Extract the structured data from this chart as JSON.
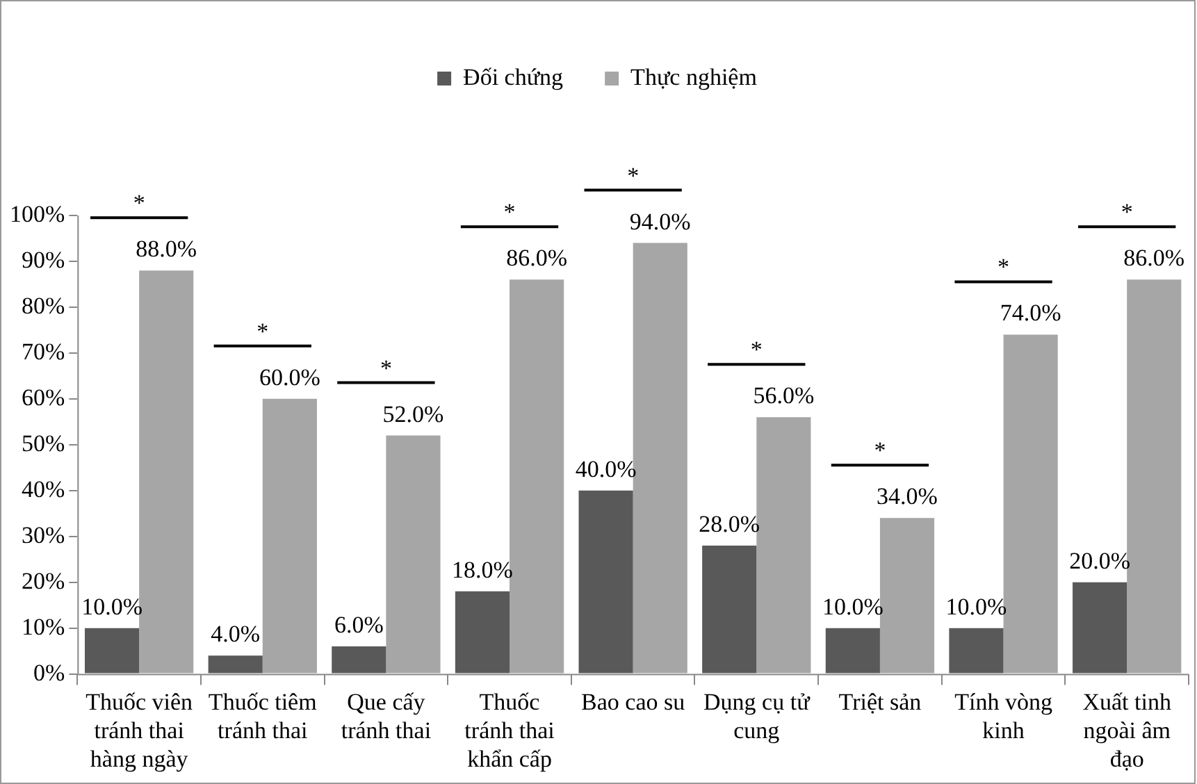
{
  "chart_data": {
    "type": "bar",
    "categories": [
      "Thuốc viên tránh thai hàng ngày",
      "Thuốc tiêm tránh thai",
      "Que cấy tránh thai",
      "Thuốc tránh thai khẩn cấp",
      "Bao cao su",
      "Dụng cụ tử cung",
      "Triệt sản",
      "Tính vòng kinh",
      "Xuất tinh ngoài âm đạo"
    ],
    "series": [
      {
        "name": "Đối chứng",
        "color": "#595959",
        "values": [
          10,
          4,
          6,
          18,
          40,
          28,
          10,
          10,
          20
        ],
        "value_labels": [
          "10.0%",
          "4.0%",
          "6.0%",
          "18.0%",
          "40.0%",
          "28.0%",
          "10.0%",
          "10.0%",
          "20.0%"
        ]
      },
      {
        "name": "Thực nghiệm",
        "color": "#a6a6a6",
        "values": [
          88,
          60,
          52,
          86,
          94,
          56,
          34,
          74,
          86
        ],
        "value_labels": [
          "88.0%",
          "60.0%",
          "52.0%",
          "86.0%",
          "94.0%",
          "56.0%",
          "34.0%",
          "74.0%",
          "86.0%"
        ]
      }
    ],
    "ylim": [
      0,
      100
    ],
    "yticks": [
      {
        "value": 0,
        "label": "0%"
      },
      {
        "value": 10,
        "label": "10%"
      },
      {
        "value": 20,
        "label": "20%"
      },
      {
        "value": 30,
        "label": "30%"
      },
      {
        "value": 40,
        "label": "40%"
      },
      {
        "value": 50,
        "label": "50%"
      },
      {
        "value": 60,
        "label": "60%"
      },
      {
        "value": 70,
        "label": "70%"
      },
      {
        "value": 80,
        "label": "80%"
      },
      {
        "value": 90,
        "label": "90%"
      },
      {
        "value": 100,
        "label": "100%"
      }
    ],
    "grid": false,
    "legend": "top",
    "annotations": [
      "*",
      "*",
      "*",
      "*",
      "*",
      "*",
      "*",
      "*",
      "*"
    ]
  }
}
